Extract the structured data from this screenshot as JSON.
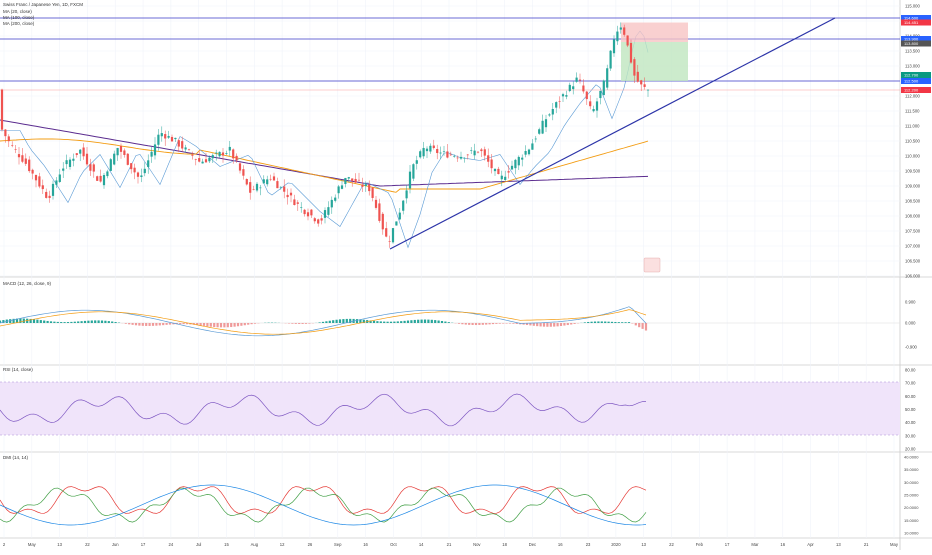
{
  "legend": {
    "main": "Swiss Franc / Japanese Yen, 1D, FXCM",
    "ma1": "MA (20, close)",
    "ma2": "MA (100, close)",
    "ma3": "MA (200, close)"
  },
  "indicators": {
    "macd": "MACD (12, 26, close, 9)",
    "rsi": "RSI (14, close)",
    "dmi": "DMI (14, 14)"
  },
  "price_axis": {
    "ticks": [
      "115.000",
      "114.500",
      "114.000",
      "113.500",
      "113.000",
      "112.500",
      "112.000",
      "111.500",
      "111.000",
      "110.500",
      "110.000",
      "109.500",
      "109.000",
      "108.500",
      "108.000",
      "107.500",
      "107.000",
      "106.500",
      "106.000"
    ],
    "badges": [
      {
        "text": "114.600",
        "color": "#2962ff"
      },
      {
        "text": "114.451",
        "color": "#f23645"
      },
      {
        "text": "113.900",
        "color": "#2962ff"
      },
      {
        "text": "113.800",
        "color": "#555555"
      },
      {
        "text": "112.700",
        "color": "#089981"
      },
      {
        "text": "112.500",
        "color": "#2962ff"
      },
      {
        "text": "112.200",
        "color": "#f23645"
      }
    ]
  },
  "macd_axis": {
    "ticks": [
      "0.900",
      "0.000",
      "-0.900"
    ]
  },
  "rsi_axis": {
    "ticks": [
      "80.00",
      "70.00",
      "60.00",
      "50.00",
      "40.00",
      "30.00",
      "20.00"
    ]
  },
  "dmi_axis": {
    "ticks": [
      "40.0000",
      "35.0000",
      "30.0000",
      "25.0000",
      "20.0000",
      "15.0000",
      "10.0000"
    ]
  },
  "time_axis": {
    "labels": [
      "2",
      "May",
      "13",
      "22",
      "Jun",
      "17",
      "24",
      "Jul",
      "15",
      "Aug",
      "12",
      "26",
      "Sep",
      "16",
      "Oct",
      "14",
      "21",
      "Nov",
      "18",
      "Dec",
      "16",
      "23",
      "2020",
      "13",
      "22",
      "Feb",
      "17",
      "Mar",
      "16",
      "Apr",
      "13",
      "21",
      "May"
    ]
  },
  "colors": {
    "bull": "#26a69a",
    "bear": "#ef5350",
    "ma20": "#5b9bd5",
    "ma100": "#f39c12",
    "ma200": "#5b2c8f",
    "trend": "#2c34a8",
    "level": "#3a3ac8",
    "rsi_band": "#f0e4fa"
  }
}
